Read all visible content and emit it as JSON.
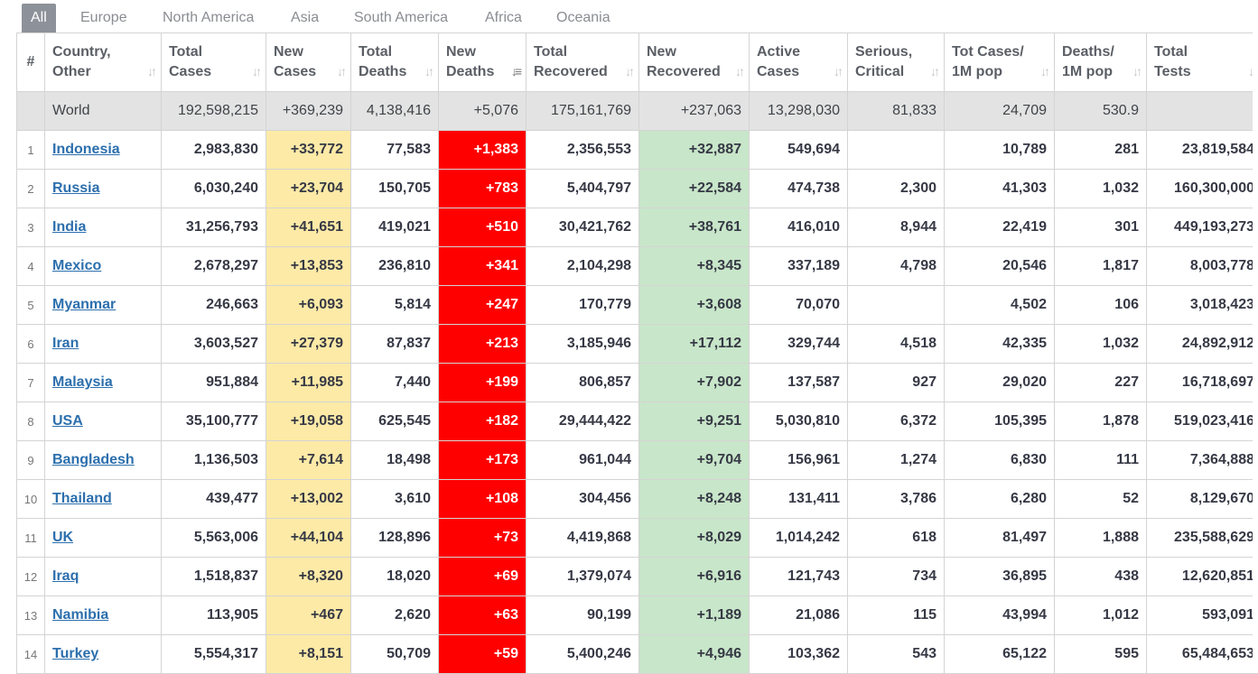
{
  "tabs": [
    "All",
    "Europe",
    "North America",
    "Asia",
    "South America",
    "Africa",
    "Oceania"
  ],
  "columns": [
    {
      "line1": "#",
      "line2": ""
    },
    {
      "line1": "Country,",
      "line2": "Other"
    },
    {
      "line1": "Total",
      "line2": "Cases"
    },
    {
      "line1": "New",
      "line2": "Cases"
    },
    {
      "line1": "Total",
      "line2": "Deaths"
    },
    {
      "line1": "New",
      "line2": "Deaths"
    },
    {
      "line1": "Total",
      "line2": "Recovered"
    },
    {
      "line1": "New",
      "line2": "Recovered"
    },
    {
      "line1": "Active",
      "line2": "Cases"
    },
    {
      "line1": "Serious,",
      "line2": "Critical"
    },
    {
      "line1": "Tot Cases/",
      "line2": "1M pop"
    },
    {
      "line1": "Deaths/",
      "line2": "1M pop"
    },
    {
      "line1": "Total",
      "line2": "Tests"
    }
  ],
  "world": [
    "",
    "World",
    "192,598,215",
    "+369,239",
    "4,138,416",
    "+5,076",
    "175,161,769",
    "+237,063",
    "13,298,030",
    "81,833",
    "24,709",
    "530.9",
    ""
  ],
  "rows": [
    [
      "1",
      "Indonesia",
      "2,983,830",
      "+33,772",
      "77,583",
      "+1,383",
      "2,356,553",
      "+32,887",
      "549,694",
      "",
      "10,789",
      "281",
      "23,819,584"
    ],
    [
      "2",
      "Russia",
      "6,030,240",
      "+23,704",
      "150,705",
      "+783",
      "5,404,797",
      "+22,584",
      "474,738",
      "2,300",
      "41,303",
      "1,032",
      "160,300,000"
    ],
    [
      "3",
      "India",
      "31,256,793",
      "+41,651",
      "419,021",
      "+510",
      "30,421,762",
      "+38,761",
      "416,010",
      "8,944",
      "22,419",
      "301",
      "449,193,273"
    ],
    [
      "4",
      "Mexico",
      "2,678,297",
      "+13,853",
      "236,810",
      "+341",
      "2,104,298",
      "+8,345",
      "337,189",
      "4,798",
      "20,546",
      "1,817",
      "8,003,778"
    ],
    [
      "5",
      "Myanmar",
      "246,663",
      "+6,093",
      "5,814",
      "+247",
      "170,779",
      "+3,608",
      "70,070",
      "",
      "4,502",
      "106",
      "3,018,423"
    ],
    [
      "6",
      "Iran",
      "3,603,527",
      "+27,379",
      "87,837",
      "+213",
      "3,185,946",
      "+17,112",
      "329,744",
      "4,518",
      "42,335",
      "1,032",
      "24,892,912"
    ],
    [
      "7",
      "Malaysia",
      "951,884",
      "+11,985",
      "7,440",
      "+199",
      "806,857",
      "+7,902",
      "137,587",
      "927",
      "29,020",
      "227",
      "16,718,697"
    ],
    [
      "8",
      "USA",
      "35,100,777",
      "+19,058",
      "625,545",
      "+182",
      "29,444,422",
      "+9,251",
      "5,030,810",
      "6,372",
      "105,395",
      "1,878",
      "519,023,416"
    ],
    [
      "9",
      "Bangladesh",
      "1,136,503",
      "+7,614",
      "18,498",
      "+173",
      "961,044",
      "+9,704",
      "156,961",
      "1,274",
      "6,830",
      "111",
      "7,364,888"
    ],
    [
      "10",
      "Thailand",
      "439,477",
      "+13,002",
      "3,610",
      "+108",
      "304,456",
      "+8,248",
      "131,411",
      "3,786",
      "6,280",
      "52",
      "8,129,670"
    ],
    [
      "11",
      "UK",
      "5,563,006",
      "+44,104",
      "128,896",
      "+73",
      "4,419,868",
      "+8,029",
      "1,014,242",
      "618",
      "81,497",
      "1,888",
      "235,588,629"
    ],
    [
      "12",
      "Iraq",
      "1,518,837",
      "+8,320",
      "18,020",
      "+69",
      "1,379,074",
      "+6,916",
      "121,743",
      "734",
      "36,895",
      "438",
      "12,620,851"
    ],
    [
      "13",
      "Namibia",
      "113,905",
      "+467",
      "2,620",
      "+63",
      "90,199",
      "+1,189",
      "21,086",
      "115",
      "43,994",
      "1,012",
      "593,091"
    ],
    [
      "14",
      "Turkey",
      "5,554,317",
      "+8,151",
      "50,709",
      "+59",
      "5,400,246",
      "+4,946",
      "103,362",
      "543",
      "65,122",
      "595",
      "65,484,653"
    ]
  ],
  "colors": {
    "new_cases": "#fdeaa7",
    "new_deaths": "#ff0000",
    "new_recovered": "#c8e6c9",
    "world_row": "#e3e3e3",
    "link": "#2c6fad"
  }
}
